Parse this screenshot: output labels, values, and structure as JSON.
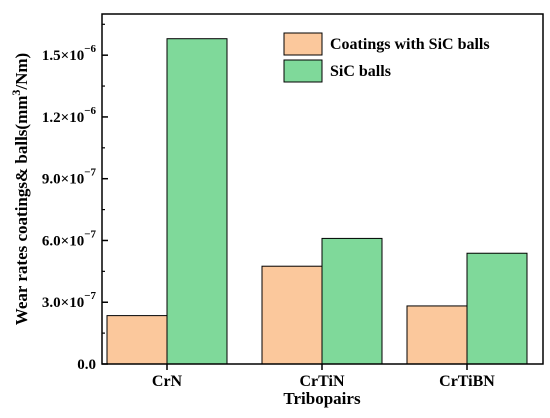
{
  "chart_data": {
    "type": "bar",
    "xlabel": "Tribopairs",
    "ylabel": "Wear rates coatings& balls(mm³/Nm)",
    "categories": [
      "CrN",
      "CrTiN",
      "CrTiBN"
    ],
    "series": [
      {
        "name": "Coatings with SiC balls",
        "values": [
          2.35e-07,
          4.75e-07,
          2.82e-07
        ],
        "color": "#fbc89c"
      },
      {
        "name": "SiC balls",
        "values": [
          1.58e-06,
          6.1e-07,
          5.38e-07
        ],
        "color": "#7fd99a"
      }
    ],
    "ylim": [
      0,
      1.7e-06
    ],
    "yticks": [
      0,
      3e-07,
      6e-07,
      9e-07,
      1.2e-06,
      1.5e-06
    ],
    "ytick_labels": [
      {
        "mantissa": "0.0",
        "exponent": ""
      },
      {
        "mantissa": "3.0×10",
        "exponent": "−7"
      },
      {
        "mantissa": "6.0×10",
        "exponent": "−7"
      },
      {
        "mantissa": "9.0×10",
        "exponent": "−7"
      },
      {
        "mantissa": "1.2×10",
        "exponent": "−6"
      },
      {
        "mantissa": "1.5×10",
        "exponent": "−6"
      }
    ],
    "legend_position": "top-right",
    "grid": false
  }
}
